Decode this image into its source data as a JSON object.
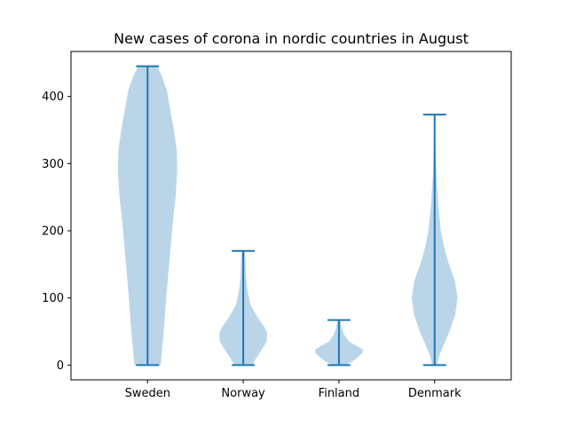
{
  "chart_data": {
    "type": "violin",
    "title": "New cases of corona in nordic countries in August",
    "xlabel": "",
    "ylabel": "",
    "categories": [
      "Sweden",
      "Norway",
      "Finland",
      "Denmark"
    ],
    "ylim": [
      -22,
      467
    ],
    "yticks": [
      0,
      100,
      200,
      300,
      400
    ],
    "grid": false,
    "legend": "none",
    "colors": {
      "body": "#bad5e8",
      "line": "#1f77b4"
    },
    "series": [
      {
        "category": "Sweden",
        "min": 0,
        "max": 445,
        "density": [
          [
            0,
            0.55
          ],
          [
            20,
            0.6
          ],
          [
            50,
            0.68
          ],
          [
            90,
            0.76
          ],
          [
            130,
            0.85
          ],
          [
            170,
            0.95
          ],
          [
            210,
            1.05
          ],
          [
            250,
            1.17
          ],
          [
            290,
            1.24
          ],
          [
            320,
            1.22
          ],
          [
            350,
            1.1
          ],
          [
            380,
            0.95
          ],
          [
            410,
            0.8
          ],
          [
            430,
            0.6
          ],
          [
            445,
            0.4
          ]
        ]
      },
      {
        "category": "Norway",
        "min": 0,
        "max": 170,
        "density": [
          [
            0,
            0.38
          ],
          [
            8,
            0.5
          ],
          [
            20,
            0.72
          ],
          [
            35,
            0.98
          ],
          [
            48,
            1.0
          ],
          [
            58,
            0.86
          ],
          [
            70,
            0.62
          ],
          [
            90,
            0.3
          ],
          [
            110,
            0.18
          ],
          [
            130,
            0.12
          ],
          [
            150,
            0.1
          ],
          [
            165,
            0.08
          ],
          [
            170,
            0.06
          ]
        ]
      },
      {
        "category": "Finland",
        "min": 0,
        "max": 67,
        "density": [
          [
            0,
            0.26
          ],
          [
            5,
            0.55
          ],
          [
            12,
            0.8
          ],
          [
            18,
            0.98
          ],
          [
            23,
            1.0
          ],
          [
            28,
            0.78
          ],
          [
            35,
            0.42
          ],
          [
            45,
            0.22
          ],
          [
            55,
            0.12
          ],
          [
            62,
            0.08
          ],
          [
            67,
            0.05
          ]
        ]
      },
      {
        "category": "Denmark",
        "min": 0,
        "max": 373,
        "density": [
          [
            0,
            0.1
          ],
          [
            15,
            0.2
          ],
          [
            30,
            0.38
          ],
          [
            50,
            0.62
          ],
          [
            75,
            0.86
          ],
          [
            100,
            0.96
          ],
          [
            125,
            0.85
          ],
          [
            150,
            0.6
          ],
          [
            175,
            0.4
          ],
          [
            200,
            0.26
          ],
          [
            240,
            0.15
          ],
          [
            280,
            0.08
          ],
          [
            320,
            0.04
          ],
          [
            355,
            0.02
          ],
          [
            373,
            0.01
          ]
        ]
      }
    ]
  }
}
